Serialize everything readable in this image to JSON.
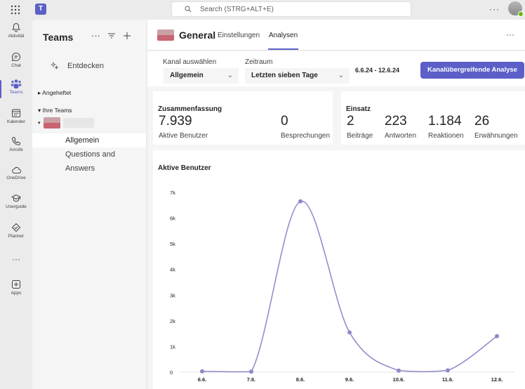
{
  "topbar": {
    "search_placeholder": "Search (STRG+ALT+E)",
    "more_label": "···"
  },
  "rail": {
    "items": [
      {
        "label": "Aktivität",
        "icon": "bell-icon"
      },
      {
        "label": "Chat",
        "icon": "chat-icon"
      },
      {
        "label": "Teams",
        "icon": "teams-icon"
      },
      {
        "label": "Kalender",
        "icon": "calendar-icon"
      },
      {
        "label": "Anrufe",
        "icon": "phone-icon"
      },
      {
        "label": "OneDrive",
        "icon": "cloud-icon"
      },
      {
        "label": "Userguide",
        "icon": "graduation-cap-icon"
      },
      {
        "label": "Planner",
        "icon": "planner-icon"
      },
      {
        "label": "Apps",
        "icon": "add-apps-icon"
      }
    ],
    "more_label": "···"
  },
  "sidepanel": {
    "title": "Teams",
    "discover": "Entdecken",
    "pinned": "Angeheftet",
    "your_teams": "Ihre Teams",
    "channels": [
      "Allgemein",
      "Questions and Answers"
    ]
  },
  "header": {
    "channel_name": "General",
    "tabs": [
      "Einstellungen",
      "Analysen"
    ],
    "active_tab": "Analysen"
  },
  "filters": {
    "channel_label": "Kanal auswählen",
    "channel_value": "Allgemein",
    "period_label": "Zeitraum",
    "period_value": "Letzten sieben Tage",
    "date_range": "6.6.24 - 12.6.24",
    "cross_channel_button": "Kanalübergreifende Analyse"
  },
  "summary": {
    "title": "Zusammenfassung",
    "metrics": [
      {
        "value": "7.939",
        "label": "Aktive Benutzer"
      },
      {
        "value": "0",
        "label": "Besprechungen"
      }
    ]
  },
  "engagement": {
    "title": "Einsatz",
    "metrics": [
      {
        "value": "2",
        "label": "Beiträge"
      },
      {
        "value": "223",
        "label": "Antworten"
      },
      {
        "value": "1.184",
        "label": "Reaktionen"
      },
      {
        "value": "26",
        "label": "Erwähnungen"
      }
    ]
  },
  "chart_data": {
    "type": "line",
    "title": "Aktive Benutzer",
    "x": [
      "6.6.",
      "7.6.",
      "8.6.",
      "9.6.",
      "10.6.",
      "11.6.",
      "12.6."
    ],
    "series": [
      {
        "values": [
          30,
          20,
          6650,
          1550,
          60,
          70,
          1400
        ]
      }
    ],
    "yticks": [
      "0",
      "1k",
      "2k",
      "3k",
      "4k",
      "5k",
      "6k",
      "7k"
    ],
    "ylim": [
      0,
      7000
    ],
    "color": "#8b89c8",
    "grid": false
  }
}
